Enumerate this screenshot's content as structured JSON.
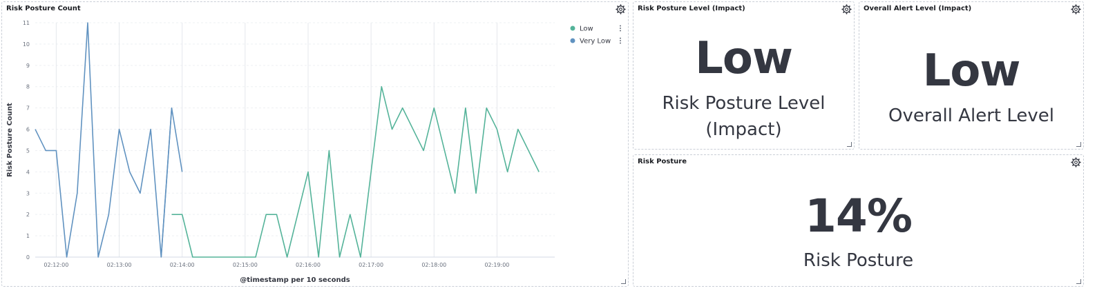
{
  "panels": {
    "chart": {
      "title": "Risk Posture Count"
    },
    "level_impact": {
      "title": "Risk Posture Level (Impact)",
      "value": "Low",
      "label": "Risk Posture Level (Impact)"
    },
    "alert_level": {
      "title": "Overall Alert Level (Impact)",
      "value": "Low",
      "label": "Overall Alert Level"
    },
    "risk_posture": {
      "title": "Risk Posture",
      "value": "14%",
      "label": "Risk Posture"
    }
  },
  "icons": {
    "settings": "gear-icon",
    "resize": "resize-handle-icon",
    "legend_menu": "more-vertical-icon"
  },
  "colors": {
    "low": "#54b399",
    "very_low": "#6092c0"
  },
  "chart_data": {
    "type": "line",
    "title": "",
    "xlabel": "@timestamp per 10 seconds",
    "ylabel": "Risk Posture Count",
    "ylim": [
      0,
      11
    ],
    "y_ticks": [
      0,
      1,
      2,
      3,
      4,
      5,
      6,
      7,
      8,
      9,
      10,
      11
    ],
    "x_tick_labels": [
      "02:12:00",
      "02:13:00",
      "02:14:00",
      "02:15:00",
      "02:16:00",
      "02:17:00",
      "02:18:00",
      "02:19:00"
    ],
    "legend_position": "top-right",
    "grid": true,
    "series": [
      {
        "name": "Low",
        "color": "#54b399",
        "x": [
          "02:13:50",
          "02:14:00",
          "02:14:10",
          "02:14:20",
          "02:14:30",
          "02:14:40",
          "02:14:50",
          "02:15:00",
          "02:15:10",
          "02:15:20",
          "02:15:30",
          "02:15:40",
          "02:15:50",
          "02:16:00",
          "02:16:10",
          "02:16:20",
          "02:16:30",
          "02:16:40",
          "02:16:50",
          "02:17:00",
          "02:17:10",
          "02:17:20",
          "02:17:30",
          "02:17:40",
          "02:17:50",
          "02:18:00",
          "02:18:10",
          "02:18:20",
          "02:18:30",
          "02:18:40",
          "02:18:50",
          "02:19:00",
          "02:19:10",
          "02:19:20",
          "02:19:30",
          "02:19:40"
        ],
        "values": [
          2,
          2,
          0,
          0,
          0,
          0,
          0,
          0,
          0,
          2,
          2,
          0,
          2,
          4,
          0,
          5,
          0,
          2,
          0,
          4,
          8,
          6,
          7,
          6,
          5,
          7,
          5,
          3,
          7,
          3,
          7,
          6,
          4,
          6,
          5,
          4
        ]
      },
      {
        "name": "Very Low",
        "color": "#6092c0",
        "x": [
          "02:11:40",
          "02:11:50",
          "02:12:00",
          "02:12:10",
          "02:12:20",
          "02:12:30",
          "02:12:40",
          "02:12:50",
          "02:13:00",
          "02:13:10",
          "02:13:20",
          "02:13:30",
          "02:13:40",
          "02:13:50"
        ],
        "values": [
          6,
          5,
          5,
          0,
          3,
          11,
          0,
          2,
          6,
          4,
          3,
          6,
          0,
          7
        ],
        "tail_x": [
          "02:13:40",
          "02:13:50",
          "02:14:00"
        ],
        "tail_values": [
          0,
          7,
          4
        ]
      }
    ]
  }
}
